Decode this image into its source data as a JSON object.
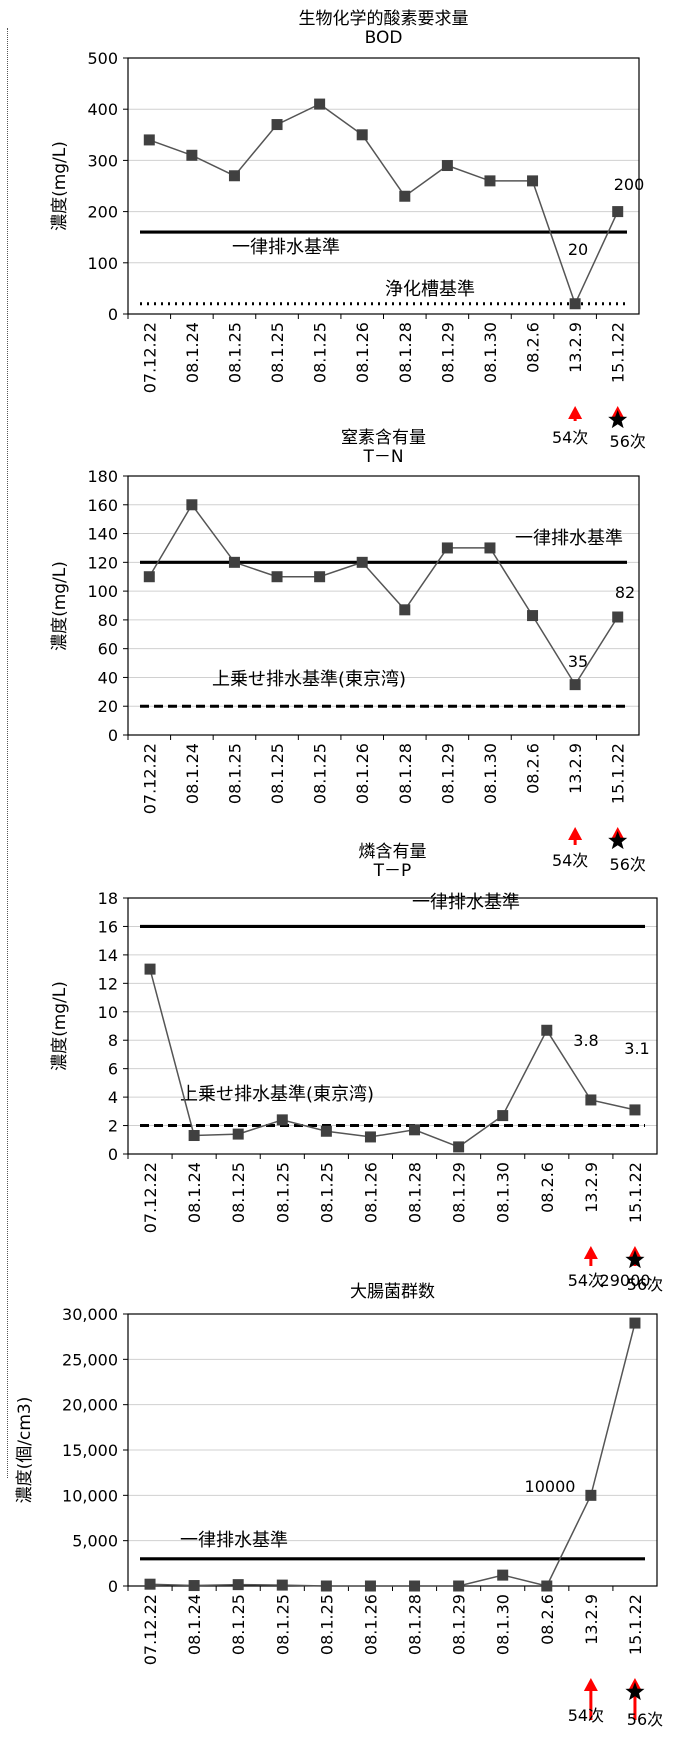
{
  "colors": {
    "series": "#555555",
    "marker": "#404040",
    "arrow": "#ff0000",
    "reference": "#000000",
    "grid": "#d0d0d0"
  },
  "chart_data": [
    {
      "type": "line",
      "title": "生物化学的酸素要求量",
      "subtitle": "BOD",
      "ylabel": "濃度(mg/L)",
      "categories": [
        "07.12.22",
        "08.1.24",
        "08.1.25",
        "08.1.25",
        "08.1.25",
        "08.1.26",
        "08.1.28",
        "08.1.29",
        "08.1.30",
        "08.2.6",
        "13.2.9",
        "15.1.22"
      ],
      "values": [
        340,
        310,
        270,
        370,
        410,
        350,
        230,
        290,
        260,
        260,
        20,
        200
      ],
      "ylim": [
        0,
        500
      ],
      "yticks": [
        0,
        100,
        200,
        300,
        400,
        500
      ],
      "ytick_labels": [
        "0",
        "100",
        "200",
        "300",
        "400",
        "500"
      ],
      "grid": true,
      "reference_lines": [
        {
          "label": "一律排水基準",
          "value": 160,
          "style": "solid"
        },
        {
          "label": "浄化槽基準",
          "value": 20,
          "style": "dotted"
        }
      ],
      "point_labels": [
        {
          "index": 10,
          "text": "20"
        },
        {
          "index": 11,
          "text": "200"
        }
      ],
      "markers": [
        {
          "index": 10,
          "text": "54次",
          "star": false
        },
        {
          "index": 11,
          "text": "56次",
          "star": true
        }
      ]
    },
    {
      "type": "line",
      "title": "窒素含有量",
      "subtitle": "T－N",
      "ylabel": "濃度(mg/L)",
      "categories": [
        "07.12.22",
        "08.1.24",
        "08.1.25",
        "08.1.25",
        "08.1.25",
        "08.1.26",
        "08.1.28",
        "08.1.29",
        "08.1.30",
        "08.2.6",
        "13.2.9",
        "15.1.22"
      ],
      "values": [
        110,
        160,
        120,
        110,
        110,
        120,
        87,
        130,
        130,
        83,
        35,
        82
      ],
      "ylim": [
        0,
        180
      ],
      "yticks": [
        0,
        20,
        40,
        60,
        80,
        100,
        120,
        140,
        160,
        180
      ],
      "ytick_labels": [
        "0",
        "20",
        "40",
        "60",
        "80",
        "100",
        "120",
        "140",
        "160",
        "180"
      ],
      "grid": true,
      "reference_lines": [
        {
          "label": "一律排水基準",
          "value": 120,
          "style": "solid"
        },
        {
          "label": "上乗せ排水基準(東京湾)",
          "value": 20,
          "style": "dashed"
        }
      ],
      "point_labels": [
        {
          "index": 10,
          "text": "35"
        },
        {
          "index": 11,
          "text": "82"
        }
      ],
      "markers": [
        {
          "index": 10,
          "text": "54次",
          "star": false
        },
        {
          "index": 11,
          "text": "56次",
          "star": true
        }
      ]
    },
    {
      "type": "line",
      "title": "燐含有量",
      "subtitle": "T－P",
      "ylabel": "濃度(mg/L)",
      "categories": [
        "07.12.22",
        "08.1.24",
        "08.1.25",
        "08.1.25",
        "08.1.25",
        "08.1.26",
        "08.1.28",
        "08.1.29",
        "08.1.30",
        "08.2.6",
        "13.2.9",
        "15.1.22"
      ],
      "values": [
        13,
        1.3,
        1.4,
        2.4,
        1.6,
        1.2,
        1.7,
        0.5,
        2.7,
        8.7,
        3.8,
        3.1
      ],
      "ylim": [
        0,
        18
      ],
      "yticks": [
        0,
        2,
        4,
        6,
        8,
        10,
        12,
        14,
        16,
        18
      ],
      "ytick_labels": [
        "0",
        "2",
        "4",
        "6",
        "8",
        "10",
        "12",
        "14",
        "16",
        "18"
      ],
      "grid": true,
      "reference_lines": [
        {
          "label": "一律排水基準",
          "value": 16,
          "style": "solid"
        },
        {
          "label": "上乗せ排水基準(東京湾)",
          "value": 2,
          "style": "dashed"
        }
      ],
      "point_labels": [
        {
          "index": 10,
          "text": "3.8"
        },
        {
          "index": 11,
          "text": "3.1"
        }
      ],
      "markers": [
        {
          "index": 10,
          "text": "54次",
          "star": false
        },
        {
          "index": 11,
          "text": "56次",
          "star": true
        }
      ]
    },
    {
      "type": "line",
      "title": "大腸菌群数",
      "subtitle": "",
      "ylabel": "濃度(個/cm3)",
      "categories": [
        "07.12.22",
        "08.1.24",
        "08.1.25",
        "08.1.25",
        "08.1.25",
        "08.1.26",
        "08.1.28",
        "08.1.29",
        "08.1.30",
        "08.2.6",
        "13.2.9",
        "15.1.22"
      ],
      "values": [
        200,
        50,
        150,
        100,
        0,
        0,
        0,
        0,
        1200,
        0,
        10000,
        29000
      ],
      "ylim": [
        0,
        30000
      ],
      "yticks": [
        0,
        5000,
        10000,
        15000,
        20000,
        25000,
        30000
      ],
      "ytick_labels": [
        "0",
        "5,000",
        "10,000",
        "15,000",
        "20,000",
        "25,000",
        "30,000"
      ],
      "grid": true,
      "reference_lines": [
        {
          "label": "一律排水基準",
          "value": 3000,
          "style": "solid"
        }
      ],
      "point_labels": [
        {
          "index": 10,
          "text": "10000"
        },
        {
          "index": 11,
          "text": "29000"
        }
      ],
      "markers": [
        {
          "index": 10,
          "text": "54次",
          "star": false
        },
        {
          "index": 11,
          "text": "56次",
          "star": true
        }
      ]
    }
  ]
}
